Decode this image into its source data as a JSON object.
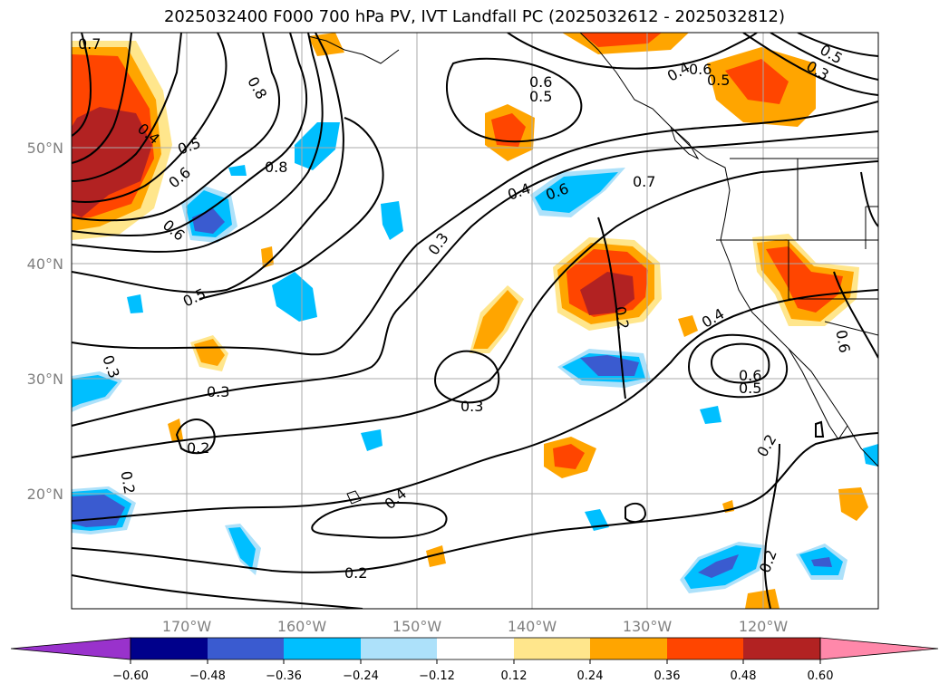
{
  "title": "2025032400 F000 700 hPa PV, IVT Landfall PC (2025032612 - 2025032812)",
  "lon_ticks": [
    "170°W",
    "160°W",
    "150°W",
    "140°W",
    "130°W",
    "120°W"
  ],
  "lat_ticks": [
    "50°N",
    "40°N",
    "30°N",
    "20°N"
  ],
  "colorbar": {
    "colors": [
      "#9932CC",
      "#00008B",
      "#3A5BD0",
      "#00BFFF",
      "#ADE1FA",
      "#FFFFFF",
      "#FFE68C",
      "#FFA500",
      "#FF4500",
      "#B22222",
      "#FF88AA"
    ],
    "labels": [
      "−0.60",
      "−0.48",
      "−0.36",
      "−0.24",
      "−0.12",
      "0.12",
      "0.24",
      "0.36",
      "0.48",
      "0.60"
    ]
  },
  "contour_labels": [
    "0.7",
    "0.8",
    "0.4",
    "0.5",
    "0.6",
    "0.8",
    "0.6",
    "0.6",
    "0.5",
    "0.5",
    "0.3",
    "0.3",
    "0.2",
    "0.3",
    "0.4",
    "0.2",
    "0.3",
    "0.4",
    "0.6",
    "0.7",
    "0.6",
    "0.5",
    "0.2",
    "0.3",
    "0.4",
    "0.6",
    "0.5",
    "0.2",
    "0.2",
    "0.2",
    "0.4",
    "0.5",
    "0.6"
  ]
}
